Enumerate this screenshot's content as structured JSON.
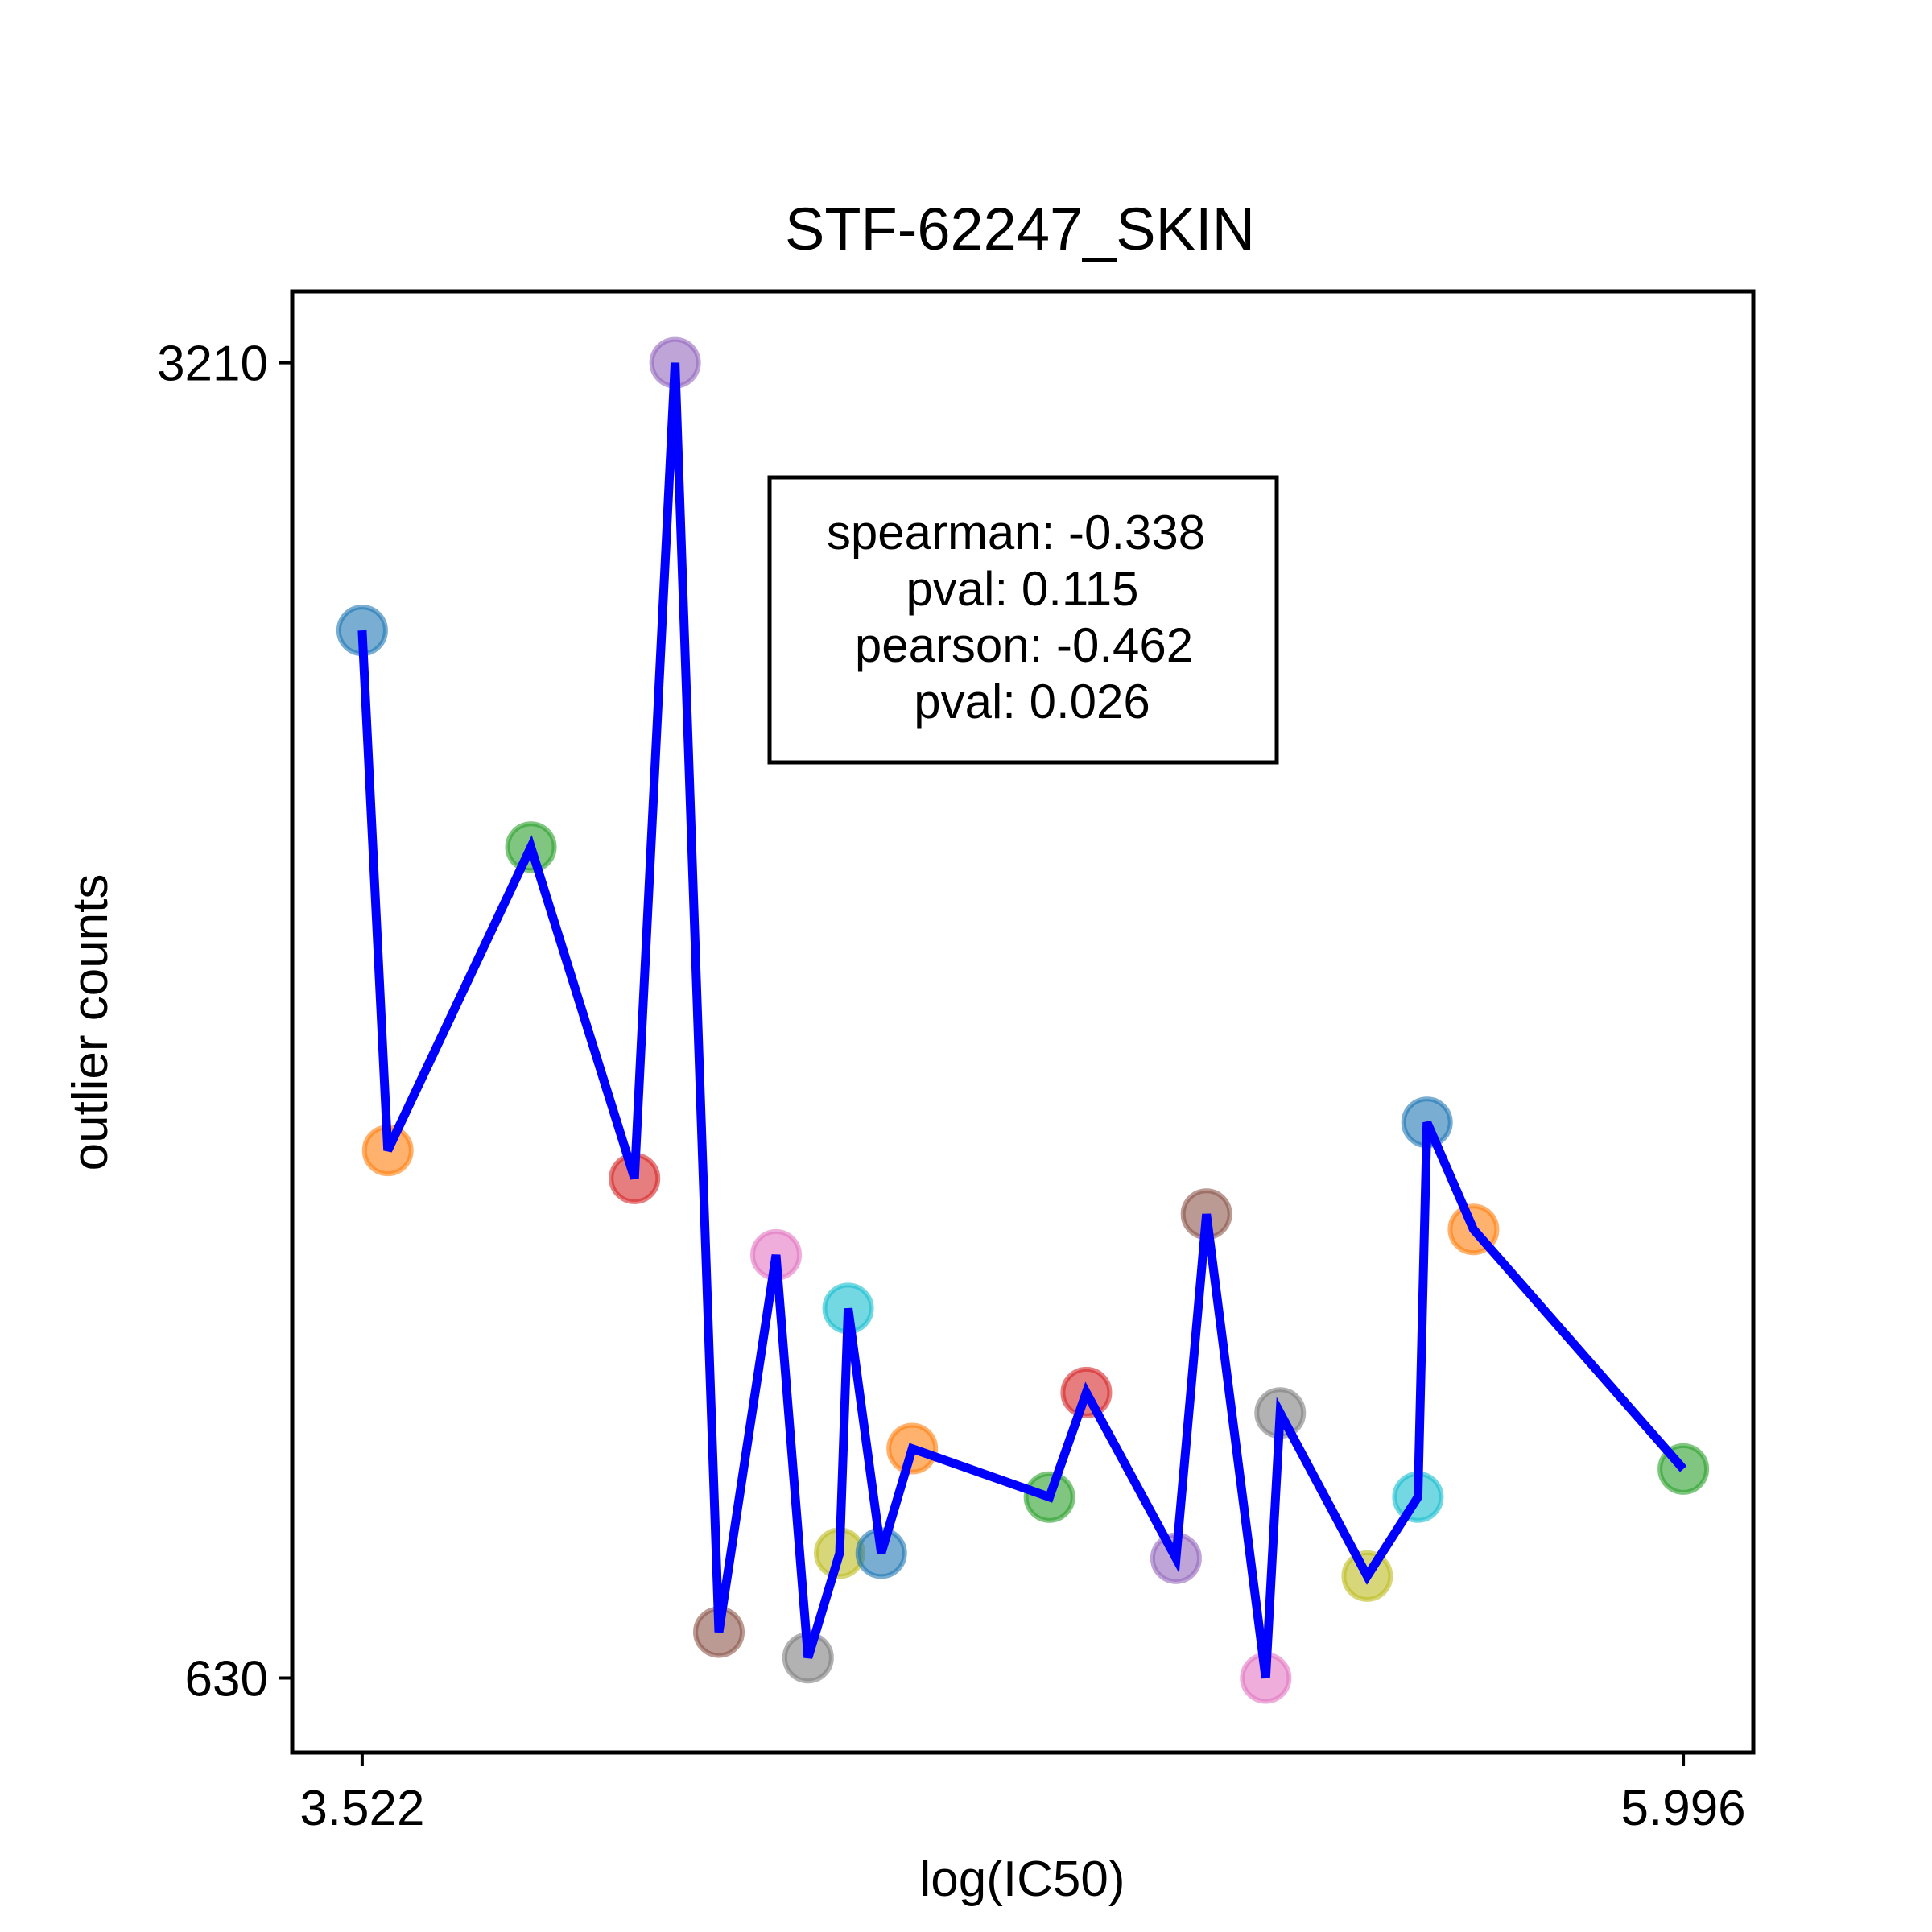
{
  "chart_data": {
    "type": "line",
    "title": "STF-62247_SKIN",
    "xlabel": "log(IC50)",
    "ylabel": "outlier counts",
    "xlim": [
      3.391,
      6.127
    ],
    "ylim": [
      484,
      3350
    ],
    "x_ticks": [
      {
        "value": 3.522,
        "label": "3.522"
      },
      {
        "value": 5.996,
        "label": "5.996"
      }
    ],
    "y_ticks": [
      {
        "value": 630,
        "label": "630"
      },
      {
        "value": 3210,
        "label": "3210"
      }
    ],
    "grid": false,
    "legend": "none",
    "line_color": "#0000ff",
    "points": [
      {
        "x": 3.522,
        "y": 2685,
        "color": "#1f77b4"
      },
      {
        "x": 3.57,
        "y": 1665,
        "color": "#ff7f0e"
      },
      {
        "x": 3.838,
        "y": 2260,
        "color": "#2ca02c"
      },
      {
        "x": 4.032,
        "y": 1610,
        "color": "#d62728"
      },
      {
        "x": 4.108,
        "y": 3210,
        "color": "#9467bd"
      },
      {
        "x": 4.19,
        "y": 720,
        "color": "#8c564b"
      },
      {
        "x": 4.297,
        "y": 1460,
        "color": "#e377c2"
      },
      {
        "x": 4.357,
        "y": 670,
        "color": "#7f7f7f"
      },
      {
        "x": 4.416,
        "y": 875,
        "color": "#bcbd22"
      },
      {
        "x": 4.432,
        "y": 1355,
        "color": "#17becf"
      },
      {
        "x": 4.494,
        "y": 875,
        "color": "#1f77b4"
      },
      {
        "x": 4.552,
        "y": 1080,
        "color": "#ff7f0e"
      },
      {
        "x": 4.809,
        "y": 985,
        "color": "#2ca02c"
      },
      {
        "x": 4.878,
        "y": 1190,
        "color": "#d62728"
      },
      {
        "x": 5.046,
        "y": 865,
        "color": "#9467bd"
      },
      {
        "x": 5.103,
        "y": 1540,
        "color": "#8c564b"
      },
      {
        "x": 5.214,
        "y": 630,
        "color": "#e377c2"
      },
      {
        "x": 5.241,
        "y": 1150,
        "color": "#7f7f7f"
      },
      {
        "x": 5.404,
        "y": 830,
        "color": "#bcbd22"
      },
      {
        "x": 5.499,
        "y": 985,
        "color": "#17becf"
      },
      {
        "x": 5.516,
        "y": 1720,
        "color": "#1f77b4"
      },
      {
        "x": 5.603,
        "y": 1510,
        "color": "#ff7f0e"
      },
      {
        "x": 5.996,
        "y": 1040,
        "color": "#2ca02c"
      }
    ],
    "annotation": {
      "lines": [
        "spearman: -0.338",
        "pval: 0.115",
        "pearson: -0.462",
        "pval: 0.026"
      ]
    }
  }
}
